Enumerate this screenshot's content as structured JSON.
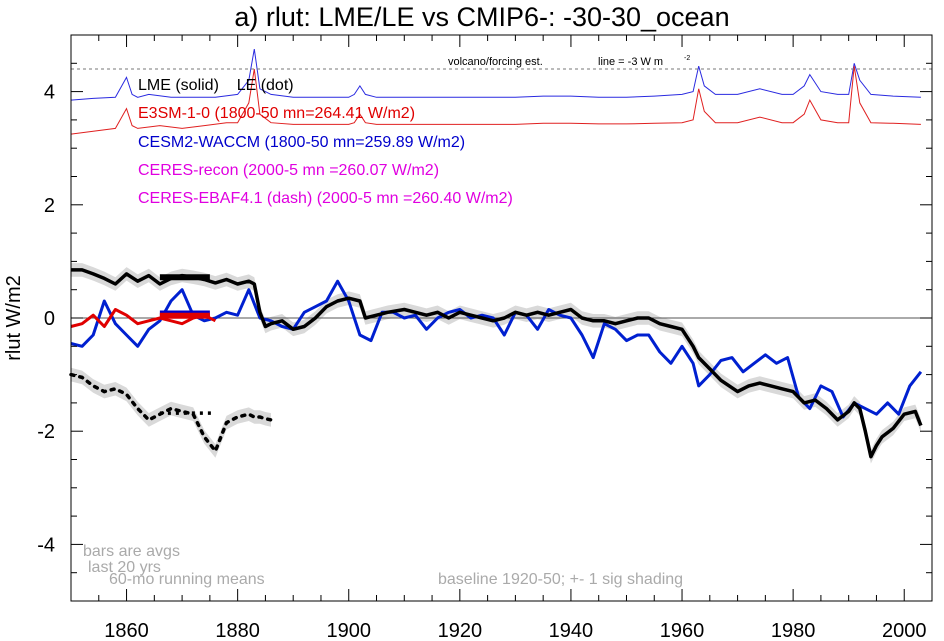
{
  "chart_data": {
    "type": "line",
    "title": "a) rlut: LME/LE vs CMIP6-: -30-30_ocean",
    "ylabel": "rlut W/m2",
    "xlabel": "",
    "xlim": [
      1850,
      2005
    ],
    "ylim": [
      -5,
      5
    ],
    "xticks": [
      1860,
      1880,
      1900,
      1920,
      1940,
      1960,
      1980,
      2000
    ],
    "yticks": [
      -4,
      -2,
      0,
      2,
      4
    ],
    "yminor": [
      -4.5,
      -3.5,
      -3,
      -2.5,
      -1.5,
      -1,
      -0.5,
      0.5,
      1,
      1.5,
      2.5,
      3,
      3.5,
      4.5
    ],
    "zero_line": 0,
    "volcano_ref_line": 4.4,
    "annotations": {
      "volcano": "volcano/forcing est.",
      "line": "line = -3 W m",
      "line_sup": "-2",
      "bars1": "bars are avgs",
      "bars2": "last 20 yrs",
      "running": "60-mo running means",
      "baseline": "baseline 1920-50; +- 1 sig shading"
    },
    "legend": [
      {
        "text": "LME (solid)    LE (dot)",
        "color": "#000000"
      },
      {
        "text": "E3SM-1-0 (1800-50 mn=264.41 W/m2)",
        "color": "#e00000"
      },
      {
        "text": "CESM2-WACCM (1800-50 mn=259.89 W/m2)",
        "color": "#0000cc"
      },
      {
        "text": "CERES-recon (2000-5 mn =260.07 W/m2)",
        "color": "#e000e0"
      },
      {
        "text": "CERES-EBAF4.1 (dash) (2000-5 mn =260.40 W/m2)",
        "color": "#e000e0"
      }
    ],
    "colors": {
      "lme": "#000000",
      "e3sm": "#e00000",
      "cesm2": "#0020d0",
      "shade": "#d9d9d9",
      "forcing_blue": "#2a2ae0",
      "forcing_red": "#e02020",
      "notes": "#aaaaaa"
    },
    "series": [
      {
        "name": "LME (solid)",
        "x": [
          1850,
          1852,
          1854,
          1856,
          1858,
          1860,
          1862,
          1864,
          1866,
          1868,
          1870,
          1872,
          1874,
          1876,
          1878,
          1880,
          1882,
          1883,
          1884,
          1885,
          1886,
          1888,
          1890,
          1892,
          1894,
          1896,
          1898,
          1900,
          1902,
          1903,
          1905,
          1907,
          1910,
          1912,
          1914,
          1916,
          1918,
          1920,
          1922,
          1924,
          1926,
          1928,
          1930,
          1932,
          1934,
          1936,
          1938,
          1940,
          1942,
          1944,
          1946,
          1948,
          1950,
          1952,
          1954,
          1956,
          1958,
          1960,
          1962,
          1963,
          1965,
          1967,
          1970,
          1972,
          1974,
          1976,
          1978,
          1980,
          1982,
          1984,
          1986,
          1988,
          1990,
          1991,
          1992,
          1993,
          1994,
          1995,
          1996,
          1998,
          2000,
          2002,
          2003
        ],
        "y": [
          0.85,
          0.85,
          0.78,
          0.7,
          0.6,
          0.78,
          0.65,
          0.75,
          0.6,
          0.7,
          0.75,
          0.72,
          0.68,
          0.62,
          0.68,
          0.6,
          0.65,
          0.6,
          0.1,
          -0.15,
          -0.1,
          -0.05,
          -0.2,
          -0.15,
          0.0,
          0.2,
          0.3,
          0.35,
          0.3,
          0.0,
          0.05,
          0.1,
          0.15,
          0.1,
          0.05,
          0.1,
          0.0,
          0.1,
          0.05,
          0.0,
          -0.05,
          0.0,
          0.1,
          0.05,
          0.1,
          0.05,
          0.1,
          0.15,
          0.0,
          -0.05,
          -0.05,
          -0.1,
          -0.05,
          0.0,
          0.0,
          -0.1,
          -0.15,
          -0.2,
          -0.5,
          -0.7,
          -0.9,
          -1.1,
          -1.3,
          -1.2,
          -1.15,
          -1.2,
          -1.25,
          -1.3,
          -1.5,
          -1.45,
          -1.6,
          -1.8,
          -1.65,
          -1.5,
          -1.6,
          -2.0,
          -2.45,
          -2.25,
          -2.1,
          -1.95,
          -1.7,
          -1.65,
          -1.9
        ]
      },
      {
        "name": "LE (dot)",
        "x": [
          1850,
          1852,
          1854,
          1856,
          1858,
          1860,
          1862,
          1864,
          1866,
          1868,
          1870,
          1872,
          1874,
          1876,
          1878,
          1880,
          1882,
          1883,
          1884,
          1885,
          1886
        ],
        "y": [
          -1.0,
          -1.05,
          -1.2,
          -1.3,
          -1.25,
          -1.35,
          -1.6,
          -1.8,
          -1.7,
          -1.6,
          -1.65,
          -1.7,
          -2.1,
          -2.35,
          -1.85,
          -1.75,
          -1.7,
          -1.75,
          -1.75,
          -1.78,
          -1.8
        ]
      },
      {
        "name": "E3SM-1-0",
        "x": [
          1850,
          1852,
          1854,
          1856,
          1858,
          1860,
          1862,
          1864,
          1866,
          1868,
          1870,
          1872,
          1874,
          1876
        ],
        "y": [
          -0.15,
          -0.1,
          0.05,
          -0.15,
          0.15,
          0.05,
          -0.1,
          -0.05,
          0.0,
          -0.05,
          -0.1,
          0.0,
          0.05,
          -0.05
        ]
      },
      {
        "name": "CESM2-WACCM",
        "x": [
          1850,
          1852,
          1854,
          1856,
          1858,
          1860,
          1862,
          1864,
          1866,
          1868,
          1870,
          1872,
          1874,
          1876,
          1878,
          1880,
          1882,
          1884,
          1886,
          1888,
          1890,
          1892,
          1894,
          1896,
          1898,
          1900,
          1902,
          1904,
          1906,
          1908,
          1910,
          1912,
          1914,
          1916,
          1918,
          1920,
          1922,
          1924,
          1926,
          1928,
          1930,
          1932,
          1934,
          1936,
          1938,
          1940,
          1942,
          1944,
          1946,
          1948,
          1950,
          1952,
          1954,
          1956,
          1958,
          1960,
          1962,
          1963,
          1965,
          1967,
          1969,
          1971,
          1973,
          1975,
          1977,
          1979,
          1981,
          1983,
          1985,
          1987,
          1989,
          1991,
          1993,
          1995,
          1997,
          1999,
          2001,
          2003
        ],
        "y": [
          -0.45,
          -0.5,
          -0.3,
          0.3,
          -0.1,
          -0.3,
          -0.5,
          -0.2,
          -0.05,
          0.3,
          0.5,
          0.05,
          -0.05,
          0.0,
          0.1,
          0.05,
          0.5,
          0.0,
          -0.05,
          -0.15,
          -0.2,
          0.1,
          0.2,
          0.3,
          0.65,
          0.3,
          -0.3,
          -0.4,
          0.1,
          0.1,
          0.0,
          0.05,
          -0.2,
          0.0,
          0.1,
          0.15,
          0.0,
          0.05,
          0.0,
          -0.3,
          0.1,
          0.05,
          -0.2,
          0.15,
          0.05,
          0.0,
          -0.3,
          -0.7,
          -0.1,
          -0.2,
          -0.4,
          -0.3,
          -0.3,
          -0.6,
          -0.8,
          -0.5,
          -0.8,
          -1.2,
          -1.0,
          -0.75,
          -0.7,
          -0.95,
          -0.8,
          -0.65,
          -0.8,
          -0.7,
          -1.4,
          -1.6,
          -1.2,
          -1.3,
          -1.75,
          -1.5,
          -1.6,
          -1.7,
          -1.5,
          -1.7,
          -1.2,
          -0.95
        ]
      }
    ],
    "bars": [
      {
        "name": "LME bar",
        "x": [
          1866,
          1875
        ],
        "y": 0.72,
        "color": "#000000"
      },
      {
        "name": "CESM2 bar",
        "x": [
          1866,
          1875
        ],
        "y": 0.08,
        "color": "#0000cc"
      },
      {
        "name": "E3SM bar",
        "x": [
          1866,
          1875
        ],
        "y": 0.04,
        "color": "#e00000"
      },
      {
        "name": "LE bar",
        "x": [
          1866,
          1876
        ],
        "y": -1.68,
        "color": "#000000",
        "dotted": true
      }
    ],
    "forcing": [
      {
        "name": "forcing blue",
        "x": [
          1850,
          1854,
          1858,
          1860,
          1861,
          1862,
          1864,
          1868,
          1872,
          1876,
          1880,
          1882,
          1883,
          1884,
          1886,
          1890,
          1895,
          1900,
          1901,
          1902,
          1903,
          1905,
          1910,
          1915,
          1920,
          1925,
          1930,
          1935,
          1940,
          1945,
          1950,
          1955,
          1960,
          1962,
          1963,
          1964,
          1966,
          1970,
          1974,
          1978,
          1980,
          1982,
          1983,
          1985,
          1988,
          1990,
          1991,
          1992,
          1994,
          1998,
          2003
        ],
        "y": [
          3.85,
          3.88,
          3.9,
          4.25,
          3.95,
          3.9,
          3.95,
          3.9,
          3.9,
          3.9,
          3.95,
          4.2,
          4.75,
          4.05,
          3.95,
          3.9,
          3.9,
          3.9,
          3.95,
          4.1,
          3.95,
          3.9,
          3.9,
          3.9,
          3.9,
          3.9,
          3.9,
          3.92,
          3.92,
          3.9,
          3.9,
          3.92,
          3.95,
          4.0,
          4.45,
          4.1,
          3.95,
          3.95,
          4.05,
          3.95,
          3.95,
          4.1,
          4.3,
          4.0,
          3.95,
          3.95,
          4.5,
          4.2,
          3.95,
          3.92,
          3.9
        ]
      },
      {
        "name": "forcing red",
        "x": [
          1850,
          1854,
          1858,
          1860,
          1861,
          1862,
          1866,
          1870,
          1874,
          1878,
          1880,
          1882,
          1883,
          1884,
          1886,
          1890,
          1895,
          1900,
          1901,
          1902,
          1903,
          1905,
          1910,
          1915,
          1920,
          1925,
          1930,
          1935,
          1940,
          1945,
          1950,
          1955,
          1960,
          1962,
          1963,
          1964,
          1966,
          1970,
          1974,
          1978,
          1980,
          1982,
          1983,
          1985,
          1988,
          1990,
          1991,
          1992,
          1994,
          1998,
          2003
        ],
        "y": [
          3.25,
          3.3,
          3.35,
          3.7,
          3.4,
          3.35,
          3.4,
          3.35,
          3.4,
          3.45,
          3.45,
          3.8,
          4.4,
          3.6,
          3.45,
          3.42,
          3.42,
          3.42,
          3.45,
          3.6,
          3.45,
          3.42,
          3.42,
          3.42,
          3.42,
          3.42,
          3.42,
          3.44,
          3.44,
          3.43,
          3.43,
          3.44,
          3.45,
          3.5,
          4.05,
          3.65,
          3.45,
          3.45,
          3.55,
          3.45,
          3.45,
          3.6,
          3.85,
          3.5,
          3.45,
          3.45,
          4.45,
          3.8,
          3.45,
          3.44,
          3.42
        ]
      }
    ]
  }
}
